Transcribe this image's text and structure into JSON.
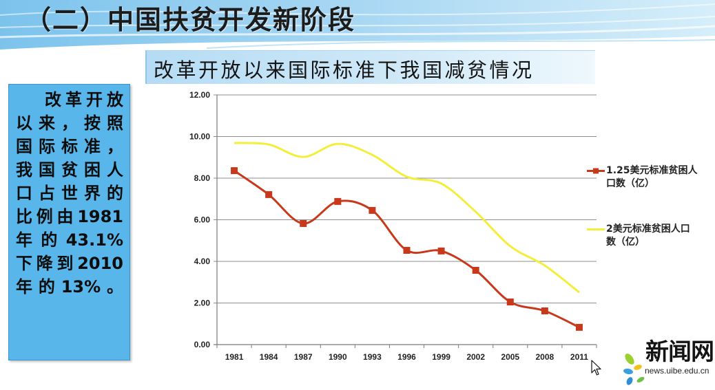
{
  "header": {
    "title": "（二）中国扶贫开发新阶段"
  },
  "subtitle": "改革开放以来国际标准下我国减贫情况",
  "side_panel": {
    "lines": [
      "改革开放",
      "以来，按照",
      "国际标准，",
      "我国贫困人",
      "口占世界的",
      "比例由1981",
      "年的43.1%",
      "下降到2010",
      "年的13%。"
    ],
    "background_color": "#58b6ea"
  },
  "chart_data": {
    "type": "line",
    "categories": [
      "1981",
      "1984",
      "1987",
      "1990",
      "1993",
      "1996",
      "1999",
      "2002",
      "2005",
      "2008",
      "2011"
    ],
    "ylim": [
      0,
      12
    ],
    "ytick_labels": [
      "0.00",
      "2.00",
      "4.00",
      "6.00",
      "8.00",
      "10.00",
      "12.00"
    ],
    "grid": true,
    "legend_position": "right",
    "series": [
      {
        "name": "1.25美元标准贫困人口数（亿）",
        "legend_lines": [
          "1.25美元标准贫困人",
          "口数（亿）"
        ],
        "color": "#c8391c",
        "marker": "square",
        "values": [
          8.36,
          7.21,
          5.82,
          6.88,
          6.45,
          4.53,
          4.5,
          3.57,
          2.05,
          1.62,
          0.83
        ]
      },
      {
        "name": "2美元标准贫困人口数（亿）",
        "legend_lines": [
          "2美元标准贫困人口",
          "数（亿）"
        ],
        "color": "#f3ee3a",
        "marker": "none",
        "values": [
          9.69,
          9.62,
          9.02,
          9.65,
          9.12,
          8.07,
          7.74,
          6.38,
          4.73,
          3.8,
          2.51
        ]
      }
    ]
  },
  "logo": {
    "text": "新闻网",
    "url": "news.uibe.edu.cn"
  }
}
